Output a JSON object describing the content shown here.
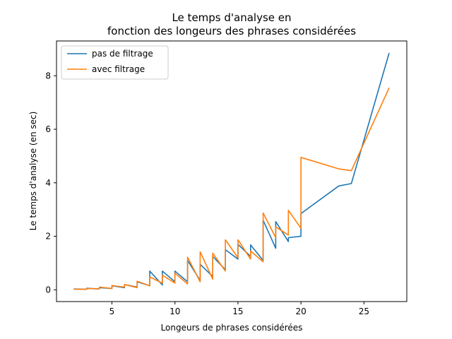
{
  "chart_data": {
    "type": "line",
    "title_lines": [
      "Le temps d'analyse en",
      "fonction des longeurs des phrases considérées"
    ],
    "xlabel": "Longeurs de phrases considérées",
    "ylabel": "Le temps d'analyse (en sec)",
    "xlim": [
      0.6,
      28.4
    ],
    "ylim": [
      -0.44,
      9.3
    ],
    "xticks": [
      5,
      10,
      15,
      20,
      25
    ],
    "yticks": [
      0,
      2,
      4,
      6,
      8
    ],
    "grid": false,
    "legend": "top-left",
    "series": [
      {
        "name": "pas de filtrage",
        "color": "#1f77b4",
        "points": [
          [
            2,
            0.02
          ],
          [
            2,
            0.03
          ],
          [
            3,
            0.02
          ],
          [
            3,
            0.06
          ],
          [
            4,
            0.03
          ],
          [
            4,
            0.08
          ],
          [
            5,
            0.05
          ],
          [
            5,
            0.15
          ],
          [
            6,
            0.08
          ],
          [
            6,
            0.2
          ],
          [
            7,
            0.1
          ],
          [
            7,
            0.3
          ],
          [
            8,
            0.15
          ],
          [
            8,
            0.7
          ],
          [
            9,
            0.18
          ],
          [
            9,
            0.7
          ],
          [
            10,
            0.3
          ],
          [
            10,
            0.7
          ],
          [
            11,
            0.3
          ],
          [
            11,
            1.1
          ],
          [
            12,
            0.35
          ],
          [
            12,
            0.95
          ],
          [
            13,
            0.5
          ],
          [
            13,
            1.25
          ],
          [
            14,
            0.75
          ],
          [
            14,
            1.5
          ],
          [
            15,
            1.15
          ],
          [
            15,
            1.7
          ],
          [
            16,
            1.25
          ],
          [
            16,
            1.68
          ],
          [
            17,
            1.1
          ],
          [
            17,
            2.6
          ],
          [
            18,
            1.55
          ],
          [
            18,
            2.55
          ],
          [
            19,
            1.8
          ],
          [
            19,
            1.95
          ],
          [
            20,
            2.0
          ],
          [
            20,
            2.85
          ],
          [
            23,
            3.88
          ],
          [
            24,
            3.97
          ],
          [
            27,
            8.85
          ]
        ]
      },
      {
        "name": "avec filtrage",
        "color": "#ff7f0e",
        "points": [
          [
            2,
            0.0
          ],
          [
            2,
            0.02
          ],
          [
            3,
            0.02
          ],
          [
            3,
            0.05
          ],
          [
            4,
            0.03
          ],
          [
            4,
            0.1
          ],
          [
            5,
            0.05
          ],
          [
            5,
            0.16
          ],
          [
            6,
            0.1
          ],
          [
            6,
            0.2
          ],
          [
            7,
            0.08
          ],
          [
            7,
            0.32
          ],
          [
            8,
            0.15
          ],
          [
            8,
            0.48
          ],
          [
            9,
            0.25
          ],
          [
            9,
            0.55
          ],
          [
            10,
            0.25
          ],
          [
            10,
            0.62
          ],
          [
            11,
            0.22
          ],
          [
            11,
            1.22
          ],
          [
            12,
            0.3
          ],
          [
            12,
            1.42
          ],
          [
            13,
            0.4
          ],
          [
            13,
            1.37
          ],
          [
            14,
            0.7
          ],
          [
            14,
            1.87
          ],
          [
            15,
            1.2
          ],
          [
            15,
            1.87
          ],
          [
            16,
            1.15
          ],
          [
            16,
            1.45
          ],
          [
            17,
            1.05
          ],
          [
            17,
            2.87
          ],
          [
            18,
            1.95
          ],
          [
            18,
            2.35
          ],
          [
            19,
            2.05
          ],
          [
            19,
            2.97
          ],
          [
            20,
            2.3
          ],
          [
            20,
            4.95
          ],
          [
            23,
            4.52
          ],
          [
            24,
            4.45
          ],
          [
            27,
            7.55
          ]
        ]
      }
    ]
  }
}
